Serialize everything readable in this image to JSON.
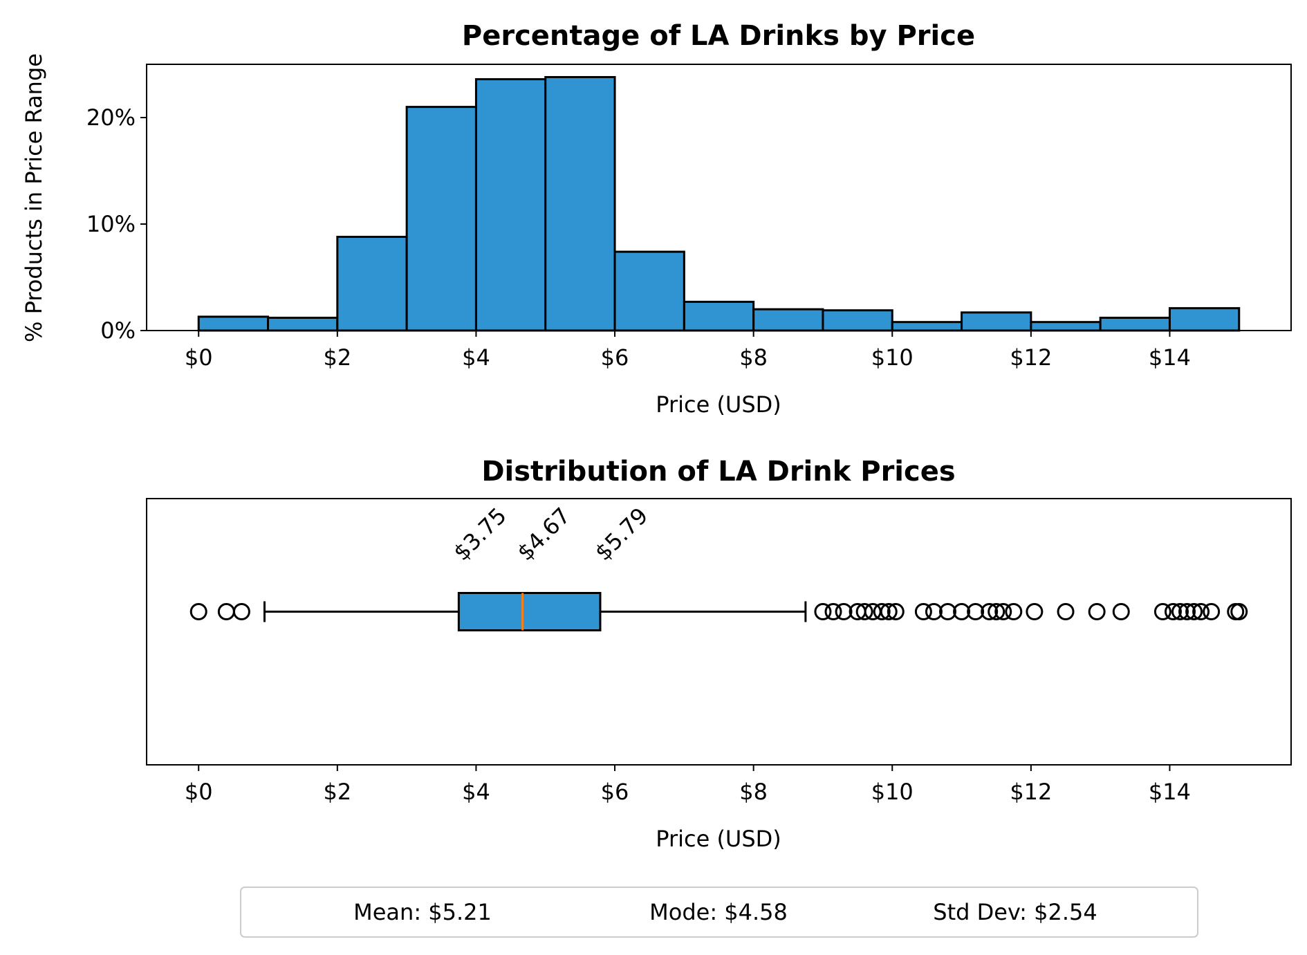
{
  "colors": {
    "bar_fill": "#3094D2",
    "median_line": "#FF7F0E",
    "stroke": "#000000"
  },
  "chart_data": [
    {
      "type": "bar",
      "title": "Percentage of LA Drinks by Price",
      "xlabel": "Price (USD)",
      "ylabel": "% Products in Price Range",
      "xlim": [
        -0.75,
        15.75
      ],
      "ylim": [
        0,
        25
      ],
      "grid": false,
      "bin_edges": [
        0,
        1,
        2,
        3,
        4,
        5,
        6,
        7,
        8,
        9,
        10,
        11,
        12,
        13,
        14,
        15
      ],
      "values": [
        1.3,
        1.2,
        8.8,
        21.0,
        23.6,
        23.8,
        7.4,
        2.7,
        2.0,
        1.9,
        0.8,
        1.7,
        0.8,
        1.2,
        2.1
      ],
      "xticks": [
        0,
        2,
        4,
        6,
        8,
        10,
        12,
        14
      ],
      "xtick_labels": [
        "$0",
        "$2",
        "$4",
        "$6",
        "$8",
        "$10",
        "$12",
        "$14"
      ],
      "yticks": [
        0,
        10,
        20
      ],
      "ytick_labels": [
        "0%",
        "10%",
        "20%"
      ]
    },
    {
      "type": "box",
      "title": "Distribution of LA Drink Prices",
      "xlabel": "Price (USD)",
      "xlim": [
        -0.75,
        15.75
      ],
      "grid": false,
      "orientation": "horizontal",
      "whisker_low": 0.95,
      "q1": 3.75,
      "median": 4.67,
      "q3": 5.79,
      "whisker_high": 8.75,
      "quartile_labels": [
        "$3.75",
        "$4.67",
        "$5.79"
      ],
      "outliers": [
        0.0,
        0.4,
        0.62,
        9.0,
        9.15,
        9.3,
        9.5,
        9.6,
        9.72,
        9.85,
        9.95,
        10.05,
        10.45,
        10.6,
        10.8,
        11.0,
        11.2,
        11.4,
        11.5,
        11.6,
        11.75,
        12.05,
        12.5,
        12.95,
        13.3,
        13.9,
        14.05,
        14.15,
        14.25,
        14.35,
        14.45,
        14.6,
        14.95,
        15.0
      ],
      "xticks": [
        0,
        2,
        4,
        6,
        8,
        10,
        12,
        14
      ],
      "xtick_labels": [
        "$0",
        "$2",
        "$4",
        "$6",
        "$8",
        "$10",
        "$12",
        "$14"
      ]
    }
  ],
  "stats": {
    "mean": "Mean: $5.21",
    "mode": "Mode: $4.58",
    "std_dev": "Std Dev: $2.54"
  }
}
